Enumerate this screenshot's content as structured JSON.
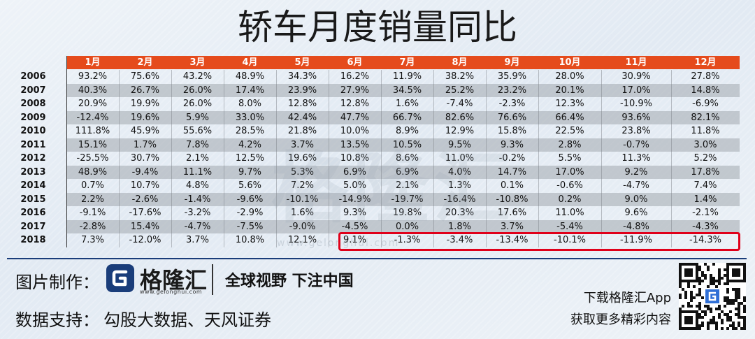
{
  "title": "轿车月度销量同比",
  "chart_data": {
    "type": "table",
    "title": "轿车月度销量同比",
    "columns": [
      "1月",
      "2月",
      "3月",
      "4月",
      "5月",
      "6月",
      "7月",
      "8月",
      "9月",
      "10月",
      "11月",
      "12月"
    ],
    "rows": [
      {
        "year": "2006",
        "values": [
          "93.2%",
          "75.6%",
          "43.2%",
          "48.9%",
          "34.3%",
          "16.2%",
          "11.9%",
          "38.2%",
          "35.9%",
          "28.0%",
          "30.9%",
          "27.8%"
        ]
      },
      {
        "year": "2007",
        "values": [
          "40.3%",
          "26.7%",
          "26.0%",
          "17.4%",
          "23.9%",
          "27.9%",
          "34.5%",
          "25.2%",
          "23.2%",
          "20.1%",
          "17.0%",
          "14.8%"
        ]
      },
      {
        "year": "2008",
        "values": [
          "20.9%",
          "19.9%",
          "26.0%",
          "8.0%",
          "12.8%",
          "12.8%",
          "1.6%",
          "-7.4%",
          "-2.3%",
          "12.3%",
          "-10.9%",
          "-6.9%"
        ]
      },
      {
        "year": "2009",
        "values": [
          "-12.4%",
          "19.6%",
          "5.9%",
          "33.0%",
          "42.4%",
          "47.7%",
          "66.7%",
          "82.6%",
          "76.6%",
          "66.4%",
          "93.6%",
          "82.1%"
        ]
      },
      {
        "year": "2010",
        "values": [
          "111.8%",
          "45.9%",
          "55.6%",
          "28.5%",
          "21.8%",
          "10.0%",
          "8.9%",
          "12.9%",
          "15.8%",
          "22.5%",
          "23.8%",
          "11.8%"
        ]
      },
      {
        "year": "2011",
        "values": [
          "15.1%",
          "1.7%",
          "7.8%",
          "4.2%",
          "3.7%",
          "13.5%",
          "10.5%",
          "9.5%",
          "9.3%",
          "2.8%",
          "-0.7%",
          "3.0%"
        ]
      },
      {
        "year": "2012",
        "values": [
          "-25.5%",
          "30.7%",
          "2.1%",
          "12.5%",
          "19.6%",
          "10.8%",
          "8.6%",
          "11.0%",
          "-0.2%",
          "5.5%",
          "11.3%",
          "5.2%"
        ]
      },
      {
        "year": "2013",
        "values": [
          "48.9%",
          "-9.4%",
          "11.1%",
          "9.7%",
          "5.3%",
          "6.9%",
          "6.9%",
          "4.0%",
          "14.7%",
          "17.0%",
          "9.2%",
          "17.8%"
        ]
      },
      {
        "year": "2014",
        "values": [
          "0.7%",
          "10.7%",
          "4.8%",
          "5.6%",
          "7.2%",
          "5.0%",
          "2.1%",
          "1.3%",
          "0.1%",
          "-0.6%",
          "-4.7%",
          "7.4%"
        ]
      },
      {
        "year": "2015",
        "values": [
          "2.2%",
          "-2.6%",
          "-1.4%",
          "-9.6%",
          "-10.1%",
          "-14.9%",
          "-19.7%",
          "-16.4%",
          "-10.8%",
          "0.2%",
          "9.0%",
          "1.4%"
        ]
      },
      {
        "year": "2016",
        "values": [
          "-9.1%",
          "-17.6%",
          "-3.2%",
          "-2.9%",
          "1.6%",
          "9.3%",
          "19.8%",
          "20.3%",
          "17.6%",
          "11.0%",
          "9.6%",
          "-2.1%"
        ]
      },
      {
        "year": "2017",
        "values": [
          "-2.8%",
          "15.4%",
          "-4.7%",
          "-7.5%",
          "-9.0%",
          "-4.5%",
          "0.0%",
          "1.8%",
          "3.7%",
          "-5.4%",
          "-4.8%",
          "-4.3%"
        ]
      },
      {
        "year": "2018",
        "values": [
          "7.3%",
          "-12.0%",
          "3.7%",
          "10.8%",
          "12.1%",
          "9.1%",
          "-1.3%",
          "-3.4%",
          "-13.4%",
          "-10.1%",
          "-11.9%",
          "-14.3%"
        ]
      }
    ],
    "highlight": {
      "year": "2018",
      "from_month": "6月",
      "to_month": "12月",
      "color": "#e0001a"
    },
    "header_color": "#e54b1c",
    "band_color": "#b1b6bb"
  },
  "watermark": {
    "main": "格隆汇",
    "url": "www.gelonghui.com"
  },
  "footer": {
    "credit_label": "图片制作：",
    "brand": "格隆汇",
    "brand_url": "www.gelonghui.com",
    "slogan": "全球视野  下注中国",
    "source_label": "数据支持：",
    "source": "勾股大数据、天风证券",
    "download": "下载格隆汇App",
    "more": "获取更多精彩内容",
    "accent": "#1a3d7a"
  }
}
